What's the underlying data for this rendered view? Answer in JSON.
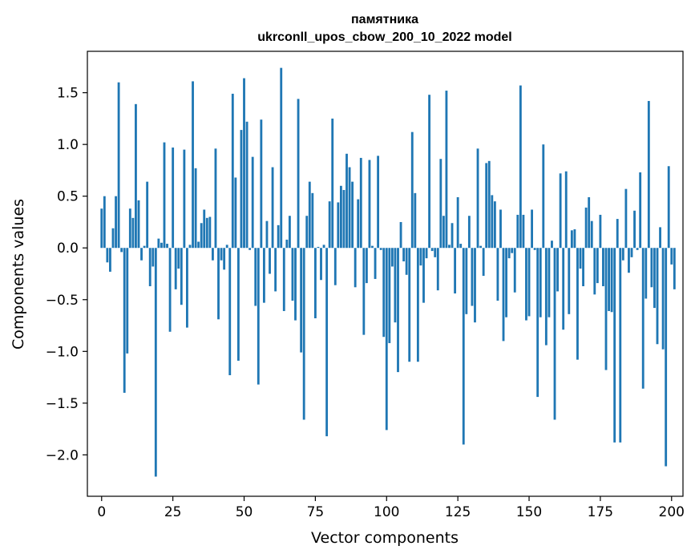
{
  "chart_data": {
    "type": "bar",
    "title": "памятника",
    "subtitle": "ukrconll_upos_cbow_200_10_2022 model",
    "xlabel": "Vector components",
    "ylabel": "Components values",
    "xlim": [
      -5,
      204
    ],
    "ylim": [
      -2.4,
      1.9
    ],
    "x_ticks": [
      0,
      25,
      50,
      75,
      100,
      125,
      150,
      175,
      200
    ],
    "x_tick_labels": [
      "0",
      "25",
      "50",
      "75",
      "100",
      "125",
      "150",
      "175",
      "200"
    ],
    "y_ticks": [
      -2.0,
      -1.5,
      -1.0,
      -0.5,
      0.0,
      0.5,
      1.0,
      1.5
    ],
    "y_tick_labels": [
      "−2.0",
      "−1.5",
      "−1.0",
      "−0.5",
      "0.0",
      "0.5",
      "1.0",
      "1.5"
    ],
    "bar_color": "#1f77b4",
    "values": [
      0.38,
      0.5,
      -0.14,
      -0.23,
      0.19,
      0.5,
      1.6,
      -0.04,
      -1.4,
      -1.02,
      0.38,
      0.29,
      1.39,
      0.46,
      -0.12,
      0.02,
      0.64,
      -0.37,
      -0.18,
      -2.21,
      0.09,
      0.05,
      1.02,
      0.04,
      -0.81,
      0.97,
      -0.4,
      -0.2,
      -0.55,
      0.95,
      -0.77,
      0.03,
      1.61,
      0.77,
      0.06,
      0.24,
      0.37,
      0.29,
      0.3,
      -0.12,
      0.96,
      -0.69,
      -0.12,
      -0.21,
      0.03,
      -1.23,
      1.49,
      0.68,
      -1.09,
      1.14,
      1.64,
      1.22,
      -0.02,
      0.88,
      -0.56,
      -1.32,
      1.24,
      -0.53,
      0.26,
      -0.25,
      0.78,
      -0.42,
      0.22,
      1.74,
      -0.61,
      0.08,
      0.31,
      -0.51,
      -0.7,
      1.44,
      -1.01,
      -1.66,
      0.31,
      0.64,
      0.53,
      -0.68,
      0.01,
      -0.31,
      0.03,
      -1.82,
      0.45,
      1.25,
      -0.36,
      0.44,
      0.6,
      0.56,
      0.91,
      0.78,
      0.64,
      -0.38,
      0.47,
      0.87,
      -0.84,
      -0.34,
      0.85,
      0.02,
      -0.3,
      0.89,
      -0.02,
      -0.86,
      -1.76,
      -0.92,
      -0.18,
      -0.72,
      -1.2,
      0.25,
      -0.13,
      -0.26,
      -1.1,
      1.12,
      0.53,
      -1.1,
      -0.17,
      -0.53,
      -0.1,
      1.48,
      -0.03,
      -0.09,
      -0.41,
      0.86,
      0.31,
      1.52,
      0.03,
      0.24,
      -0.44,
      0.49,
      0.04,
      -1.9,
      -0.64,
      0.31,
      -0.56,
      -0.72,
      0.96,
      0.02,
      -0.27,
      0.82,
      0.84,
      0.51,
      0.45,
      -0.51,
      0.37,
      -0.9,
      -0.67,
      -0.1,
      -0.05,
      -0.43,
      0.32,
      1.57,
      0.32,
      -0.7,
      -0.66,
      0.37,
      -0.02,
      -1.44,
      -0.67,
      1.0,
      -0.94,
      -0.67,
      0.07,
      -1.66,
      -0.42,
      0.72,
      -0.79,
      0.74,
      -0.64,
      0.17,
      0.18,
      -1.08,
      -0.2,
      -0.37,
      0.39,
      0.49,
      0.26,
      -0.45,
      -0.34,
      0.32,
      -0.37,
      -1.18,
      -0.61,
      -0.62,
      -1.88,
      0.28,
      -1.88,
      -0.12,
      0.57,
      -0.24,
      -0.09,
      0.36,
      -0.02,
      0.73,
      -1.36,
      -0.49,
      1.42,
      -0.38,
      -0.58,
      -0.93,
      0.2,
      -0.98,
      -2.11,
      0.79,
      -0.16,
      -0.4
    ]
  }
}
